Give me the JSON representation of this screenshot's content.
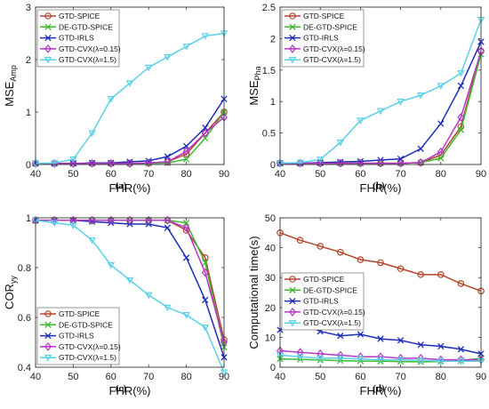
{
  "colors": {
    "GTD-SPICE": "#b5452a",
    "DE-GTD-SPICE": "#3dbb2f",
    "GTD-IRLS": "#1c2db8",
    "GTD-CVX(λ=0.15)": "#b636c8",
    "GTD-CVX(λ=1.5)": "#5ad0e8"
  },
  "markers": {
    "GTD-SPICE": "circle",
    "DE-GTD-SPICE": "x",
    "GTD-IRLS": "x",
    "GTD-CVX(λ=0.15)": "diamond",
    "GTD-CVX(λ=1.5)": "triangle-down"
  },
  "chart_data": [
    {
      "type": "line",
      "panel": "(a)",
      "xlabel": "FHR(%)",
      "ylabel_main": "MSE",
      "ylabel_sub": "Amp",
      "x": [
        40,
        45,
        50,
        55,
        60,
        65,
        70,
        75,
        80,
        85,
        90
      ],
      "xlim": [
        40,
        90
      ],
      "ylim": [
        0,
        3
      ],
      "xticks": [
        "40",
        "50",
        "60",
        "70",
        "80",
        "90"
      ],
      "yticks": [
        "0",
        "1",
        "2",
        "3"
      ],
      "legend_position": "top-left",
      "series": [
        {
          "name": "GTD-SPICE",
          "values": [
            0.02,
            0.02,
            0.02,
            0.02,
            0.02,
            0.02,
            0.03,
            0.05,
            0.2,
            0.6,
            1.0
          ]
        },
        {
          "name": "DE-GTD-SPICE",
          "values": [
            0.02,
            0.02,
            0.02,
            0.02,
            0.02,
            0.02,
            0.02,
            0.03,
            0.1,
            0.5,
            1.0
          ]
        },
        {
          "name": "GTD-IRLS",
          "values": [
            0.02,
            0.02,
            0.02,
            0.03,
            0.03,
            0.05,
            0.07,
            0.15,
            0.35,
            0.7,
            1.25
          ]
        },
        {
          "name": "GTD-CVX(λ=0.15)",
          "values": [
            0.02,
            0.02,
            0.02,
            0.02,
            0.02,
            0.02,
            0.03,
            0.05,
            0.25,
            0.6,
            0.9
          ]
        },
        {
          "name": "GTD-CVX(λ=1.5)",
          "values": [
            0.02,
            0.03,
            0.1,
            0.6,
            1.25,
            1.55,
            1.85,
            2.05,
            2.25,
            2.45,
            2.5
          ]
        }
      ]
    },
    {
      "type": "line",
      "panel": "(b)",
      "xlabel": "FHR(%)",
      "ylabel_main": "MSE",
      "ylabel_sub": "Pha",
      "x": [
        40,
        45,
        50,
        55,
        60,
        65,
        70,
        75,
        80,
        85,
        90
      ],
      "xlim": [
        40,
        90
      ],
      "ylim": [
        0,
        2.5
      ],
      "xticks": [
        "40",
        "50",
        "60",
        "70",
        "80",
        "90"
      ],
      "yticks": [
        "0",
        "0.5",
        "1",
        "1.5",
        "2",
        "2.5"
      ],
      "legend_position": "top-left",
      "series": [
        {
          "name": "GTD-SPICE",
          "values": [
            0.02,
            0.02,
            0.02,
            0.02,
            0.02,
            0.02,
            0.02,
            0.03,
            0.15,
            0.6,
            1.8
          ]
        },
        {
          "name": "DE-GTD-SPICE",
          "values": [
            0.02,
            0.02,
            0.02,
            0.02,
            0.02,
            0.02,
            0.02,
            0.03,
            0.1,
            0.55,
            1.75
          ]
        },
        {
          "name": "GTD-IRLS",
          "values": [
            0.02,
            0.02,
            0.03,
            0.04,
            0.05,
            0.07,
            0.09,
            0.25,
            0.65,
            1.25,
            1.95
          ]
        },
        {
          "name": "GTD-CVX(λ=0.15)",
          "values": [
            0.02,
            0.02,
            0.02,
            0.02,
            0.02,
            0.02,
            0.02,
            0.03,
            0.2,
            0.75,
            1.8
          ]
        },
        {
          "name": "GTD-CVX(λ=1.5)",
          "values": [
            0.02,
            0.03,
            0.08,
            0.35,
            0.7,
            0.85,
            1.0,
            1.1,
            1.25,
            1.45,
            2.3
          ]
        }
      ]
    },
    {
      "type": "line",
      "panel": "(c)",
      "xlabel": "FHR(%)",
      "ylabel_main": "COR",
      "ylabel_sub": "yy",
      "x": [
        40,
        45,
        50,
        55,
        60,
        65,
        70,
        75,
        80,
        85,
        90
      ],
      "xlim": [
        40,
        90
      ],
      "ylim": [
        0.4,
        1.0
      ],
      "xticks": [
        "40",
        "50",
        "60",
        "70",
        "80",
        "90"
      ],
      "yticks": [
        "0.4",
        "0.6",
        "0.8",
        "1"
      ],
      "legend_position": "bottom-left",
      "series": [
        {
          "name": "GTD-SPICE",
          "values": [
            0.99,
            0.99,
            0.99,
            0.99,
            0.99,
            0.99,
            0.99,
            0.99,
            0.95,
            0.84,
            0.51
          ]
        },
        {
          "name": "DE-GTD-SPICE",
          "values": [
            0.99,
            0.99,
            0.99,
            0.99,
            0.99,
            0.99,
            0.99,
            0.99,
            0.98,
            0.82,
            0.48
          ]
        },
        {
          "name": "GTD-IRLS",
          "values": [
            0.99,
            0.99,
            0.99,
            0.985,
            0.98,
            0.975,
            0.975,
            0.96,
            0.84,
            0.67,
            0.44
          ]
        },
        {
          "name": "GTD-CVX(λ=0.15)",
          "values": [
            0.99,
            0.99,
            0.99,
            0.99,
            0.99,
            0.99,
            0.99,
            0.99,
            0.96,
            0.78,
            0.5
          ]
        },
        {
          "name": "GTD-CVX(λ=1.5)",
          "values": [
            0.99,
            0.98,
            0.97,
            0.91,
            0.81,
            0.75,
            0.69,
            0.64,
            0.61,
            0.56,
            0.38
          ]
        }
      ]
    },
    {
      "type": "line",
      "panel": "(d)",
      "xlabel": "FHR(%)",
      "ylabel_main": "Computational time(s)",
      "ylabel_sub": "",
      "x": [
        40,
        45,
        50,
        55,
        60,
        65,
        70,
        75,
        80,
        85,
        90
      ],
      "xlim": [
        40,
        90
      ],
      "ylim": [
        0,
        50
      ],
      "xticks": [
        "40",
        "50",
        "60",
        "70",
        "80",
        "90"
      ],
      "yticks": [
        "0",
        "10",
        "20",
        "30",
        "40",
        "50"
      ],
      "legend_position": "right-middle",
      "series": [
        {
          "name": "GTD-SPICE",
          "values": [
            45,
            42.5,
            40.5,
            38.5,
            36,
            35,
            33,
            31,
            31,
            28,
            25.5
          ]
        },
        {
          "name": "DE-GTD-SPICE",
          "values": [
            2.8,
            2.6,
            2.4,
            2.2,
            2.1,
            2.0,
            1.9,
            1.8,
            1.9,
            2.2,
            3.0
          ]
        },
        {
          "name": "GTD-IRLS",
          "values": [
            12.5,
            15,
            12,
            10.5,
            11,
            9.5,
            9,
            7.5,
            7,
            6,
            4.5
          ]
        },
        {
          "name": "GTD-CVX(λ=0.15)",
          "values": [
            5.5,
            5,
            4.5,
            4,
            3.5,
            3.5,
            3,
            3,
            2.5,
            2.5,
            2.5
          ]
        },
        {
          "name": "GTD-CVX(λ=1.5)",
          "values": [
            4,
            3.5,
            3,
            3,
            2.8,
            2.5,
            2.5,
            2.3,
            2,
            2,
            2
          ]
        }
      ]
    }
  ]
}
